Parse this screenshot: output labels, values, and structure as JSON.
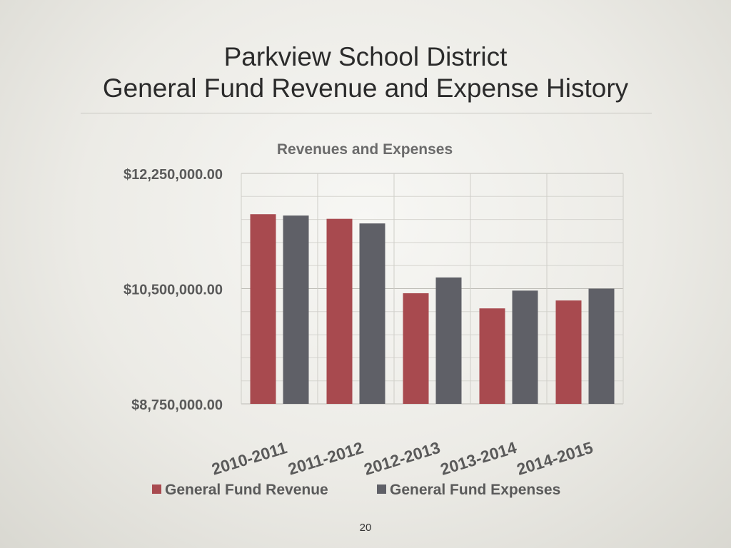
{
  "slide": {
    "title_line1": "Parkview School District",
    "title_line2": "General Fund Revenue and Expense History",
    "page_number": "20"
  },
  "chart_data": {
    "type": "bar",
    "title": "Revenues and Expenses",
    "categories": [
      "2010-2011",
      "2011-2012",
      "2012-2013",
      "2013-2014",
      "2014-2015"
    ],
    "series": [
      {
        "name": "General Fund Revenue",
        "color": "#a84a4f",
        "values": [
          11630000,
          11560000,
          10430000,
          10200000,
          10320000
        ]
      },
      {
        "name": "General Fund Expenses",
        "color": "#5f6067",
        "values": [
          11610000,
          11490000,
          10670000,
          10470000,
          10500000
        ]
      }
    ],
    "ylim": [
      8750000,
      12250000
    ],
    "y_ticks": [
      {
        "value": 12250000,
        "label": "$12,250,000.00"
      },
      {
        "value": 10500000,
        "label": "$10,500,000.00"
      },
      {
        "value": 8750000,
        "label": "$8,750,000.00"
      }
    ],
    "grid": true,
    "legend_position": "bottom"
  }
}
